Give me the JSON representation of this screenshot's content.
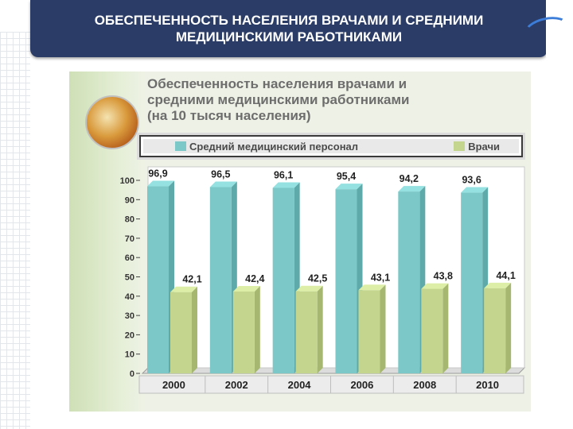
{
  "header": {
    "line1": "ОБЕСПЕЧЕННОСТЬ НАСЕЛЕНИЯ ВРАЧАМИ И СРЕДНИМИ",
    "line2": "МЕДИЦИНСКИМИ РАБОТНИКАМИ"
  },
  "colors": {
    "header_bg": "#2b3c67",
    "series_medical": "#7cc8c8",
    "series_doctors": "#c4d68e",
    "title_text": "#6d6d6d"
  },
  "chart_data": {
    "type": "bar",
    "title": "Обеспеченность населения врачами и\nсредними медицинскими работниками\n(на 10 тысяч населения)",
    "categories": [
      "2000",
      "2002",
      "2004",
      "2006",
      "2008",
      "2010"
    ],
    "series": [
      {
        "name": "Средний медицинский персонал",
        "values": [
          96.9,
          96.5,
          96.1,
          95.4,
          94.2,
          93.6
        ],
        "labels": [
          "96,9",
          "96,5",
          "96,1",
          "95,4",
          "94,2",
          "93,6"
        ]
      },
      {
        "name": "Врачи",
        "values": [
          42.1,
          42.4,
          42.5,
          43.1,
          43.8,
          44.1
        ],
        "labels": [
          "42,1",
          "42,4",
          "42,5",
          "43,1",
          "43,8",
          "44,1"
        ]
      }
    ],
    "ylim": [
      0,
      100
    ],
    "yticks": [
      "0",
      "10",
      "20",
      "30",
      "40",
      "50",
      "60",
      "70",
      "80",
      "90",
      "100"
    ],
    "legend_position": "top",
    "grid": false
  }
}
